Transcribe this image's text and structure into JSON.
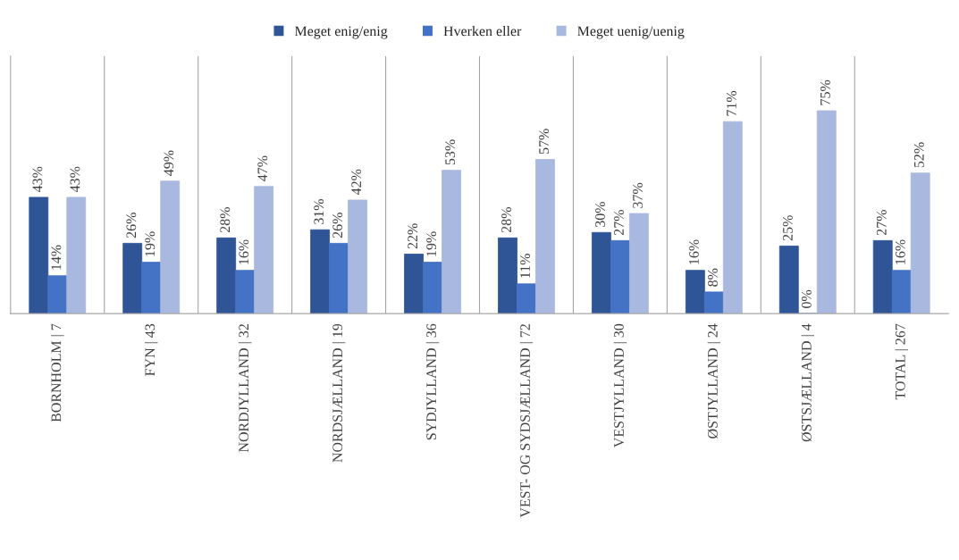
{
  "chart_data": {
    "type": "bar",
    "categories": [
      "BORNHOLM | 7",
      "FYN | 43",
      "NORDJYLLAND | 32",
      "NORDSJÆLLAND | 19",
      "SYDJYLLAND | 36",
      "VEST- OG SYDSJÆLLAND | 72",
      "VESTJYLLAND | 30",
      "ØSTJYLLAND | 24",
      "ØSTSJÆLLAND | 4",
      "TOTAL | 267"
    ],
    "series": [
      {
        "name": "Meget enig/enig",
        "color": "#2f5597",
        "values": [
          43,
          26,
          28,
          31,
          22,
          28,
          30,
          16,
          25,
          27
        ],
        "value_labels": [
          "43%",
          "26%",
          "28%",
          "31%",
          "22%",
          "28%",
          "30%",
          "16%",
          "25%",
          "27%"
        ]
      },
      {
        "name": "Hverken eller",
        "color": "#4472c4",
        "values": [
          14,
          19,
          16,
          26,
          19,
          11,
          27,
          8,
          0,
          16
        ],
        "value_labels": [
          "14%",
          "19%",
          "16%",
          "26%",
          "19%",
          "11%",
          "27%",
          "8%",
          "0%",
          "16%"
        ]
      },
      {
        "name": "Meget uenig/uenig",
        "color": "#a9b8de",
        "values": [
          43,
          49,
          47,
          42,
          53,
          57,
          37,
          71,
          75,
          52
        ],
        "value_labels": [
          "43%",
          "49%",
          "47%",
          "42%",
          "53%",
          "57%",
          "37%",
          "71%",
          "75%",
          "52%"
        ]
      }
    ],
    "grid": "x",
    "legend": "top"
  }
}
